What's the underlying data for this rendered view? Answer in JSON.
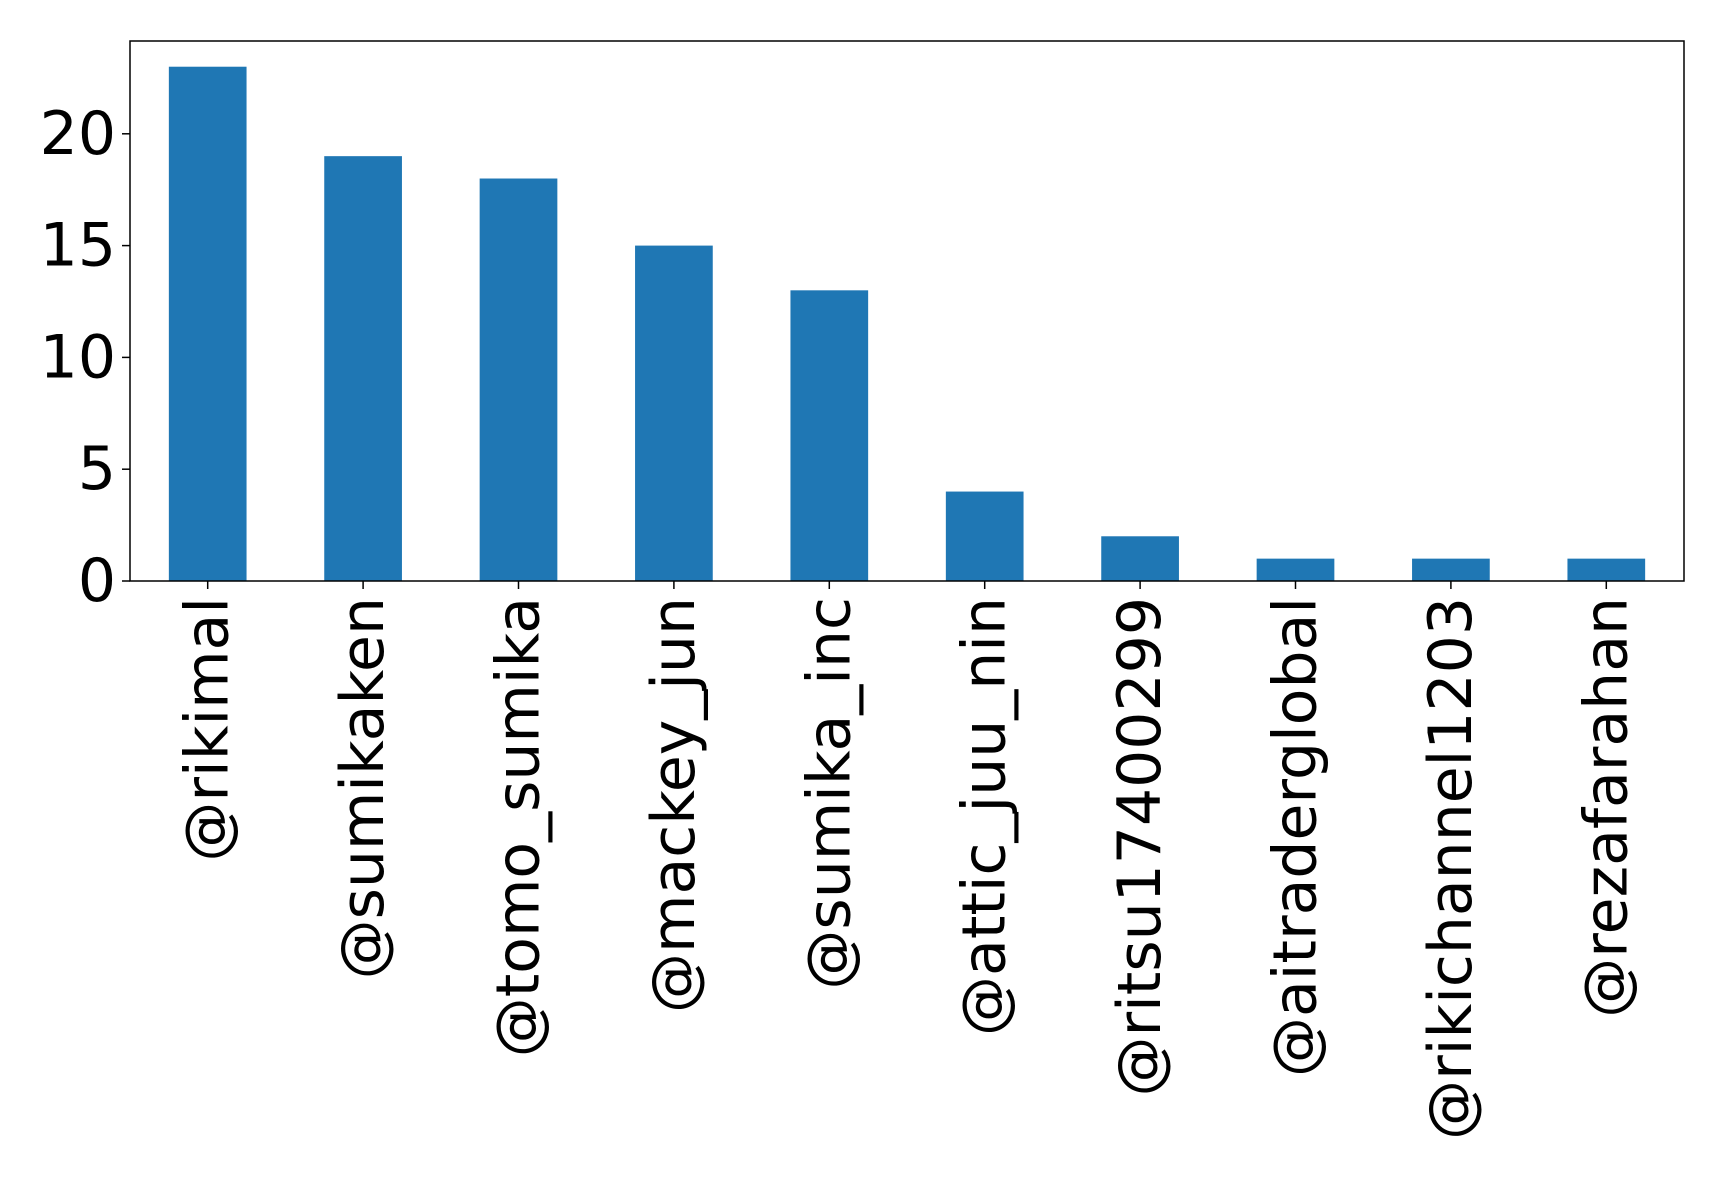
{
  "chart_data": {
    "type": "bar",
    "title": "",
    "xlabel": "",
    "ylabel": "",
    "categories": [
      "@rikimal",
      "@sumikaken",
      "@tomo_sumika",
      "@mackey_jun",
      "@sumika_inc",
      "@attic_juu_nin",
      "@ritsu17400299",
      "@aitraderglobal",
      "@rikichannel1203",
      "@rezafarahan"
    ],
    "values": [
      23,
      19,
      18,
      15,
      13,
      4,
      2,
      1,
      1,
      1
    ],
    "ylim": [
      0,
      24.15
    ],
    "yticks": [
      0,
      5,
      10,
      15,
      20
    ],
    "ytick_labels": [
      "0",
      "5",
      "10",
      "15",
      "20"
    ],
    "bar_color": "#1f77b4",
    "grid": false,
    "legend": "none"
  }
}
